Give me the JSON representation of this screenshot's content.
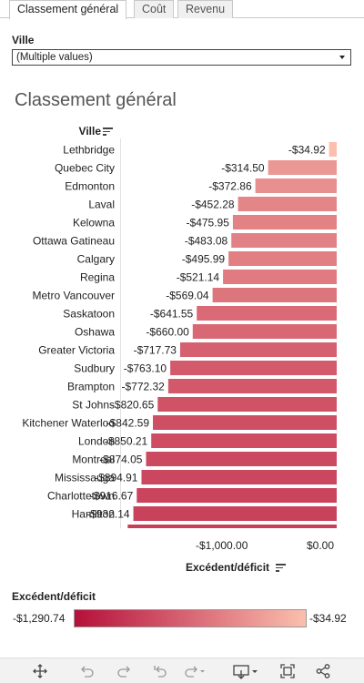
{
  "tabs": [
    {
      "label": "Classement général",
      "active": true
    },
    {
      "label": "Coût",
      "active": false
    },
    {
      "label": "Revenu",
      "active": false
    }
  ],
  "filter": {
    "label": "Ville",
    "value": "(Multiple values)"
  },
  "chart_data": {
    "type": "bar",
    "orientation": "horizontal",
    "title": "Classement général",
    "ylabel": "Ville",
    "xlabel": "Excédent/déficit",
    "xlim": [
      -1000,
      0
    ],
    "x_ticks": [
      "-$1,000.00",
      "$0.00"
    ],
    "categories": [
      "Lethbridge",
      "Quebec City",
      "Edmonton",
      "Laval",
      "Kelowna",
      "Ottawa Gatineau",
      "Calgary",
      "Regina",
      "Metro Vancouver",
      "Saskatoon",
      "Oshawa",
      "Greater Victoria",
      "Sudbury",
      "Brampton",
      "St Johns",
      "Kitchener Waterloo",
      "London",
      "Montreal",
      "Mississauga",
      "Charlottetown",
      "Hamilton"
    ],
    "values": [
      -34.92,
      -314.5,
      -372.86,
      -452.28,
      -475.95,
      -483.08,
      -495.99,
      -521.14,
      -569.04,
      -641.55,
      -660.0,
      -717.73,
      -763.1,
      -772.32,
      -820.65,
      -842.59,
      -850.21,
      -874.05,
      -894.91,
      -916.67,
      -932.14
    ],
    "value_labels": [
      "-$34.92",
      "-$314.50",
      "-$372.86",
      "-$452.28",
      "-$475.95",
      "-$483.08",
      "-$495.99",
      "-$521.14",
      "-$569.04",
      "-$641.55",
      "-$660.00",
      "-$717.73",
      "-$763.10",
      "-$772.32",
      "-$820.65",
      "-$842.59",
      "-$850.21",
      "-$874.05",
      "-$894.91",
      "-$916.67",
      "-$932.14"
    ],
    "grid": false,
    "color_scale": {
      "min_color": "#b5103a",
      "max_color": "#fbbfae"
    }
  },
  "legend": {
    "title": "Excédent/déficit",
    "min_label": "-$1,290.74",
    "max_label": "-$34.92",
    "min_value": -1290.74,
    "max_value": -34.92
  },
  "toolbar": {
    "icons": [
      "move-icon",
      "undo-icon",
      "redo-icon",
      "revert-icon",
      "refresh-icon",
      "download-icon",
      "fullscreen-icon",
      "share-icon"
    ]
  }
}
